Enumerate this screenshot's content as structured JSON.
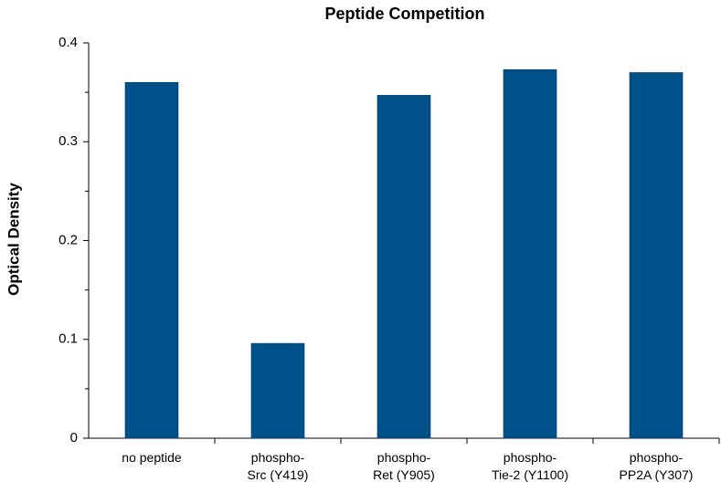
{
  "chart_data": {
    "type": "bar",
    "title": "Peptide Competition",
    "y_label": "Optical Density",
    "categories": [
      "no peptide",
      "phospho-\nSrc (Y419)",
      "phospho-\nRet (Y905)",
      "phospho-\nTie-2 (Y1100)",
      "phospho-\nPP2A (Y307)"
    ],
    "values": [
      0.36,
      0.096,
      0.347,
      0.373,
      0.37
    ],
    "color": "#00508a",
    "ylim": [
      0,
      0.4
    ],
    "yticks": [
      0,
      0.1,
      0.2,
      0.3,
      0.4
    ],
    "minor_yticks": [
      0.05,
      0.15,
      0.25,
      0.35
    ],
    "grid": false
  }
}
